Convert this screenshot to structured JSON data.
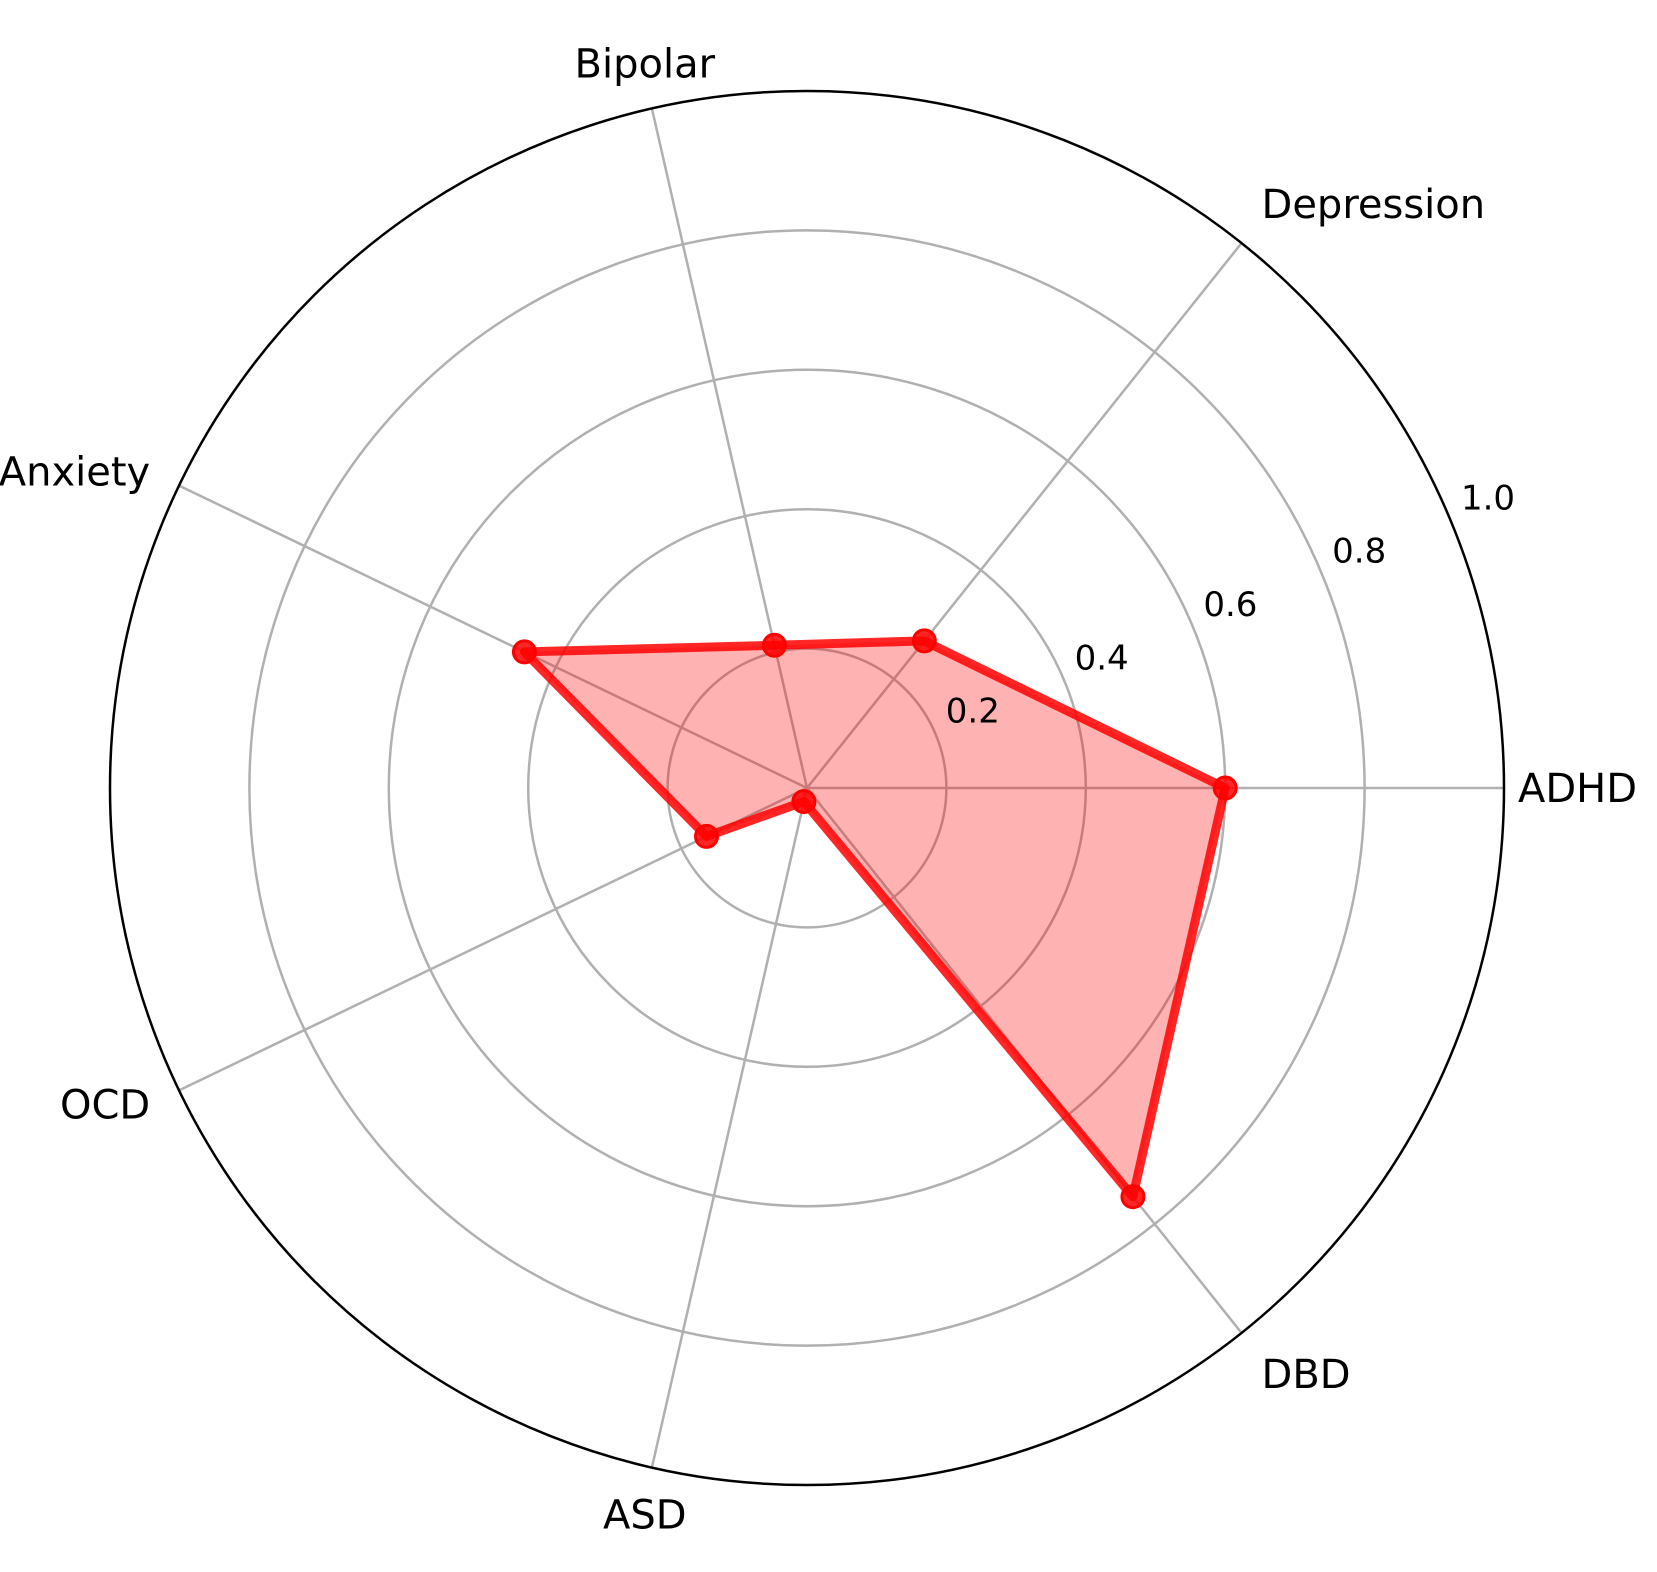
{
  "chart_data": {
    "type": "radar",
    "categories": [
      "ADHD",
      "Depression",
      "Bipolar",
      "Anxiety",
      "OCD",
      "ASD",
      "DBD"
    ],
    "values": [
      0.6,
      0.27,
      0.21,
      0.45,
      0.16,
      0.02,
      0.75
    ],
    "rticks": [
      "0.2",
      "0.4",
      "0.6",
      "0.8",
      "1.0"
    ],
    "rlim": [
      0,
      1.0
    ],
    "grid": true,
    "line_color": "#ff0000",
    "fill_color": "#ff0000",
    "fill_opacity": 0.3,
    "grid_color": "#b0b0b0"
  }
}
